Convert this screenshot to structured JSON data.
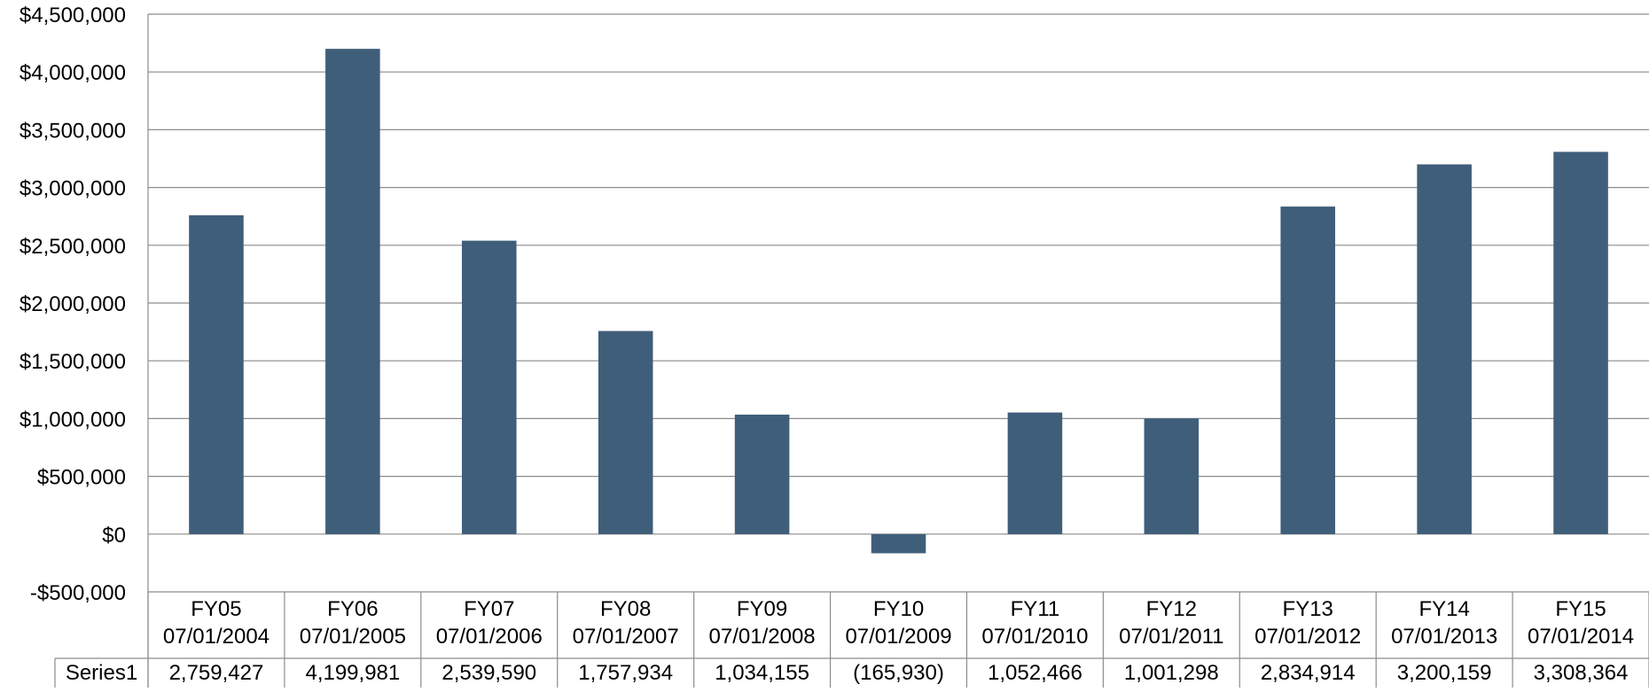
{
  "chart_data": {
    "type": "bar",
    "title": "",
    "xlabel": "",
    "ylabel": "",
    "ylim": [
      -500000,
      4500000
    ],
    "y_ticks": [
      -500000,
      0,
      500000,
      1000000,
      1500000,
      2000000,
      2500000,
      3000000,
      3500000,
      4000000,
      4500000
    ],
    "y_tick_labels": [
      "-$500,000",
      "$0",
      "$500,000",
      "$1,000,000",
      "$1,500,000",
      "$2,000,000",
      "$2,500,000",
      "$3,000,000",
      "$3,500,000",
      "$4,000,000",
      "$4,500,000"
    ],
    "grid": true,
    "categories": [
      {
        "label": "FY05",
        "date": "07/01/2004"
      },
      {
        "label": "FY06",
        "date": "07/01/2005"
      },
      {
        "label": "FY07",
        "date": "07/01/2006"
      },
      {
        "label": "FY08",
        "date": "07/01/2007"
      },
      {
        "label": "FY09",
        "date": "07/01/2008"
      },
      {
        "label": "FY10",
        "date": "07/01/2009"
      },
      {
        "label": "FY11",
        "date": "07/01/2010"
      },
      {
        "label": "FY12",
        "date": "07/01/2011"
      },
      {
        "label": "FY13",
        "date": "07/01/2012"
      },
      {
        "label": "FY14",
        "date": "07/01/2013"
      },
      {
        "label": "FY15",
        "date": "07/01/2014"
      }
    ],
    "series": [
      {
        "name": "Series1",
        "color": "#3f5e7a",
        "values": [
          2759427,
          4199981,
          2539590,
          1757934,
          1034155,
          -165930,
          1052466,
          1001298,
          2834914,
          3200159,
          3308364
        ],
        "table_labels": [
          "2,759,427",
          "4,199,981",
          "2,539,590",
          "1,757,934",
          "1,034,155",
          "(165,930)",
          "1,052,466",
          "1,001,298",
          "2,834,914",
          "3,200,159",
          "3,308,364"
        ]
      }
    ]
  },
  "colors": {
    "bar": "#3f5e7a",
    "grid": "#8c8c8c",
    "axis": "#8c8c8c",
    "text": "#000000"
  }
}
